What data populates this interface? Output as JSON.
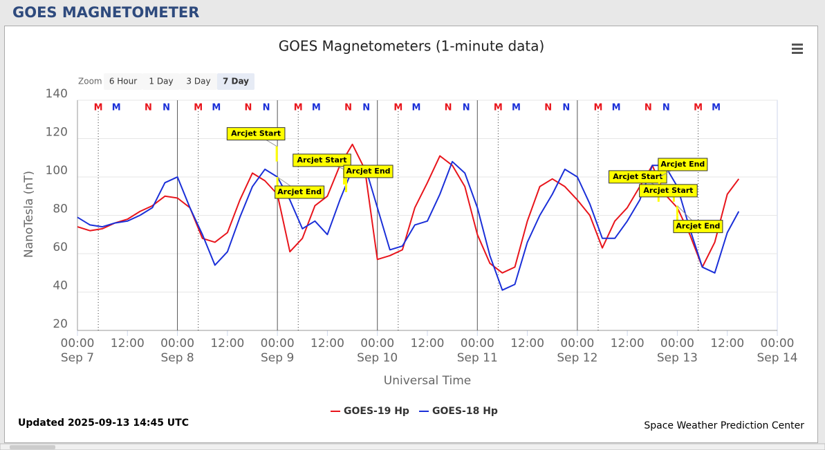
{
  "page": {
    "title": "GOES MAGNETOMETER",
    "updated": "Updated 2025-09-13 14:45 UTC",
    "credit": "Space Weather Prediction Center",
    "zoom": {
      "label": "Zoom",
      "buttons": [
        "6 Hour",
        "1 Day",
        "3 Day",
        "7 Day"
      ],
      "selected": 3
    }
  },
  "chart_data": {
    "type": "line",
    "title": "GOES Magnetometers (1-minute data)",
    "x_label": "Universal Time",
    "y_label": "NanoTesla (nT)",
    "x": [
      "2025-09-07T00:00",
      "2025-09-07T03:00",
      "2025-09-07T06:00",
      "2025-09-07T09:00",
      "2025-09-07T12:00",
      "2025-09-07T15:00",
      "2025-09-07T18:00",
      "2025-09-07T21:00",
      "2025-09-08T00:00",
      "2025-09-08T03:00",
      "2025-09-08T06:00",
      "2025-09-08T09:00",
      "2025-09-08T12:00",
      "2025-09-08T15:00",
      "2025-09-08T18:00",
      "2025-09-08T21:00",
      "2025-09-09T00:00",
      "2025-09-09T03:00",
      "2025-09-09T06:00",
      "2025-09-09T09:00",
      "2025-09-09T12:00",
      "2025-09-09T15:00",
      "2025-09-09T18:00",
      "2025-09-09T21:00",
      "2025-09-10T00:00",
      "2025-09-10T03:00",
      "2025-09-10T06:00",
      "2025-09-10T09:00",
      "2025-09-10T12:00",
      "2025-09-10T15:00",
      "2025-09-10T18:00",
      "2025-09-10T21:00",
      "2025-09-11T00:00",
      "2025-09-11T03:00",
      "2025-09-11T06:00",
      "2025-09-11T09:00",
      "2025-09-11T12:00",
      "2025-09-11T15:00",
      "2025-09-11T18:00",
      "2025-09-11T21:00",
      "2025-09-12T00:00",
      "2025-09-12T03:00",
      "2025-09-12T06:00",
      "2025-09-12T09:00",
      "2025-09-12T12:00",
      "2025-09-12T15:00",
      "2025-09-12T18:00",
      "2025-09-12T21:00",
      "2025-09-13T00:00",
      "2025-09-13T03:00",
      "2025-09-13T06:00",
      "2025-09-13T09:00",
      "2025-09-13T12:00",
      "2025-09-13T14:45"
    ],
    "series": [
      {
        "name": "GOES-19 Hp",
        "color": "#e8141b",
        "values": [
          74,
          72,
          73,
          76,
          78,
          82,
          85,
          90,
          89,
          84,
          68,
          66,
          71,
          88,
          102,
          98,
          91,
          61,
          68,
          85,
          90,
          106,
          117,
          104,
          57,
          59,
          62,
          84,
          97,
          111,
          106,
          95,
          70,
          55,
          50,
          53,
          77,
          95,
          99,
          95,
          88,
          80,
          63,
          77,
          84,
          95,
          106,
          91,
          84,
          70,
          53,
          66,
          91,
          99
        ]
      },
      {
        "name": "GOES-18 Hp",
        "color": "#1a2fd8",
        "values": [
          79,
          75,
          74,
          76,
          77,
          80,
          84,
          97,
          100,
          84,
          70,
          54,
          61,
          79,
          95,
          104,
          100,
          88,
          73,
          77,
          70,
          88,
          104,
          106,
          84,
          62,
          64,
          75,
          77,
          91,
          108,
          102,
          84,
          59,
          41,
          44,
          66,
          80,
          91,
          104,
          100,
          86,
          68,
          68,
          77,
          88,
          106,
          106,
          95,
          73,
          53,
          50,
          71,
          82
        ]
      }
    ],
    "xlim": [
      "2025-09-07T00:00",
      "2025-09-14T00:00"
    ],
    "xticks": [
      {
        "value": "2025-09-07T00:00",
        "label": [
          "00:00",
          "Sep 7"
        ]
      },
      {
        "value": "2025-09-07T12:00",
        "label": [
          "12:00"
        ]
      },
      {
        "value": "2025-09-08T00:00",
        "label": [
          "00:00",
          "Sep 8"
        ]
      },
      {
        "value": "2025-09-08T12:00",
        "label": [
          "12:00"
        ]
      },
      {
        "value": "2025-09-09T00:00",
        "label": [
          "00:00",
          "Sep 9"
        ]
      },
      {
        "value": "2025-09-09T12:00",
        "label": [
          "12:00"
        ]
      },
      {
        "value": "2025-09-10T00:00",
        "label": [
          "00:00",
          "Sep 10"
        ]
      },
      {
        "value": "2025-09-10T12:00",
        "label": [
          "12:00"
        ]
      },
      {
        "value": "2025-09-11T00:00",
        "label": [
          "00:00",
          "Sep 11"
        ]
      },
      {
        "value": "2025-09-11T12:00",
        "label": [
          "12:00"
        ]
      },
      {
        "value": "2025-09-12T00:00",
        "label": [
          "00:00",
          "Sep 12"
        ]
      },
      {
        "value": "2025-09-12T12:00",
        "label": [
          "12:00"
        ]
      },
      {
        "value": "2025-09-13T00:00",
        "label": [
          "00:00",
          "Sep 13"
        ]
      },
      {
        "value": "2025-09-13T12:00",
        "label": [
          "12:00"
        ]
      },
      {
        "value": "2025-09-14T00:00",
        "label": [
          "00:00",
          "Sep 14"
        ]
      }
    ],
    "ylim": [
      20,
      140
    ],
    "yticks": [
      20,
      40,
      60,
      80,
      100,
      120,
      140
    ],
    "grid": true,
    "day_lines": [
      "2025-09-08T00:00",
      "2025-09-09T00:00",
      "2025-09-10T00:00",
      "2025-09-11T00:00",
      "2025-09-12T00:00"
    ],
    "markers": [
      {
        "label": "M",
        "color": "#e8141b",
        "dotted_line": true,
        "x": [
          "2025-09-07T05:00",
          "2025-09-08T05:00",
          "2025-09-09T05:00",
          "2025-09-10T05:00",
          "2025-09-11T05:00",
          "2025-09-12T05:00",
          "2025-09-13T05:00"
        ]
      },
      {
        "label": "M",
        "color": "#1a2fd8",
        "dotted_line": false,
        "x": [
          "2025-09-07T09:20",
          "2025-09-08T09:20",
          "2025-09-09T09:20",
          "2025-09-10T09:20",
          "2025-09-11T09:20",
          "2025-09-12T09:20",
          "2025-09-13T09:20"
        ]
      },
      {
        "label": "N",
        "color": "#e8141b",
        "dotted_line": false,
        "x": [
          "2025-09-07T17:00",
          "2025-09-08T17:00",
          "2025-09-09T17:00",
          "2025-09-10T17:00",
          "2025-09-11T17:00",
          "2025-09-12T17:00"
        ]
      },
      {
        "label": "N",
        "color": "#1a2fd8",
        "dotted_line": false,
        "x": [
          "2025-09-07T21:20",
          "2025-09-08T21:20",
          "2025-09-09T21:20",
          "2025-09-10T21:20",
          "2025-09-11T21:20",
          "2025-09-12T21:20"
        ]
      }
    ],
    "annotations": [
      {
        "label": "Arcjet Start",
        "x": "2025-09-08T23:50",
        "y": 116
      },
      {
        "label": "Arcjet End",
        "x": "2025-09-09T00:00",
        "y": 100
      },
      {
        "label": "Arcjet Start",
        "x": "2025-09-09T16:00",
        "y": 104
      },
      {
        "label": "Arcjet End",
        "x": "2025-09-09T16:30",
        "y": 100
      },
      {
        "label": "Arcjet Start",
        "x": "2025-09-12T19:30",
        "y": 95
      },
      {
        "label": "Arcjet End",
        "x": "2025-09-12T19:40",
        "y": 100
      },
      {
        "label": "Arcjet Start",
        "x": "2025-09-12T23:10",
        "y": 95
      },
      {
        "label": "Arcjet End",
        "x": "2025-09-13T00:00",
        "y": 85
      }
    ],
    "legend": "bottom"
  }
}
